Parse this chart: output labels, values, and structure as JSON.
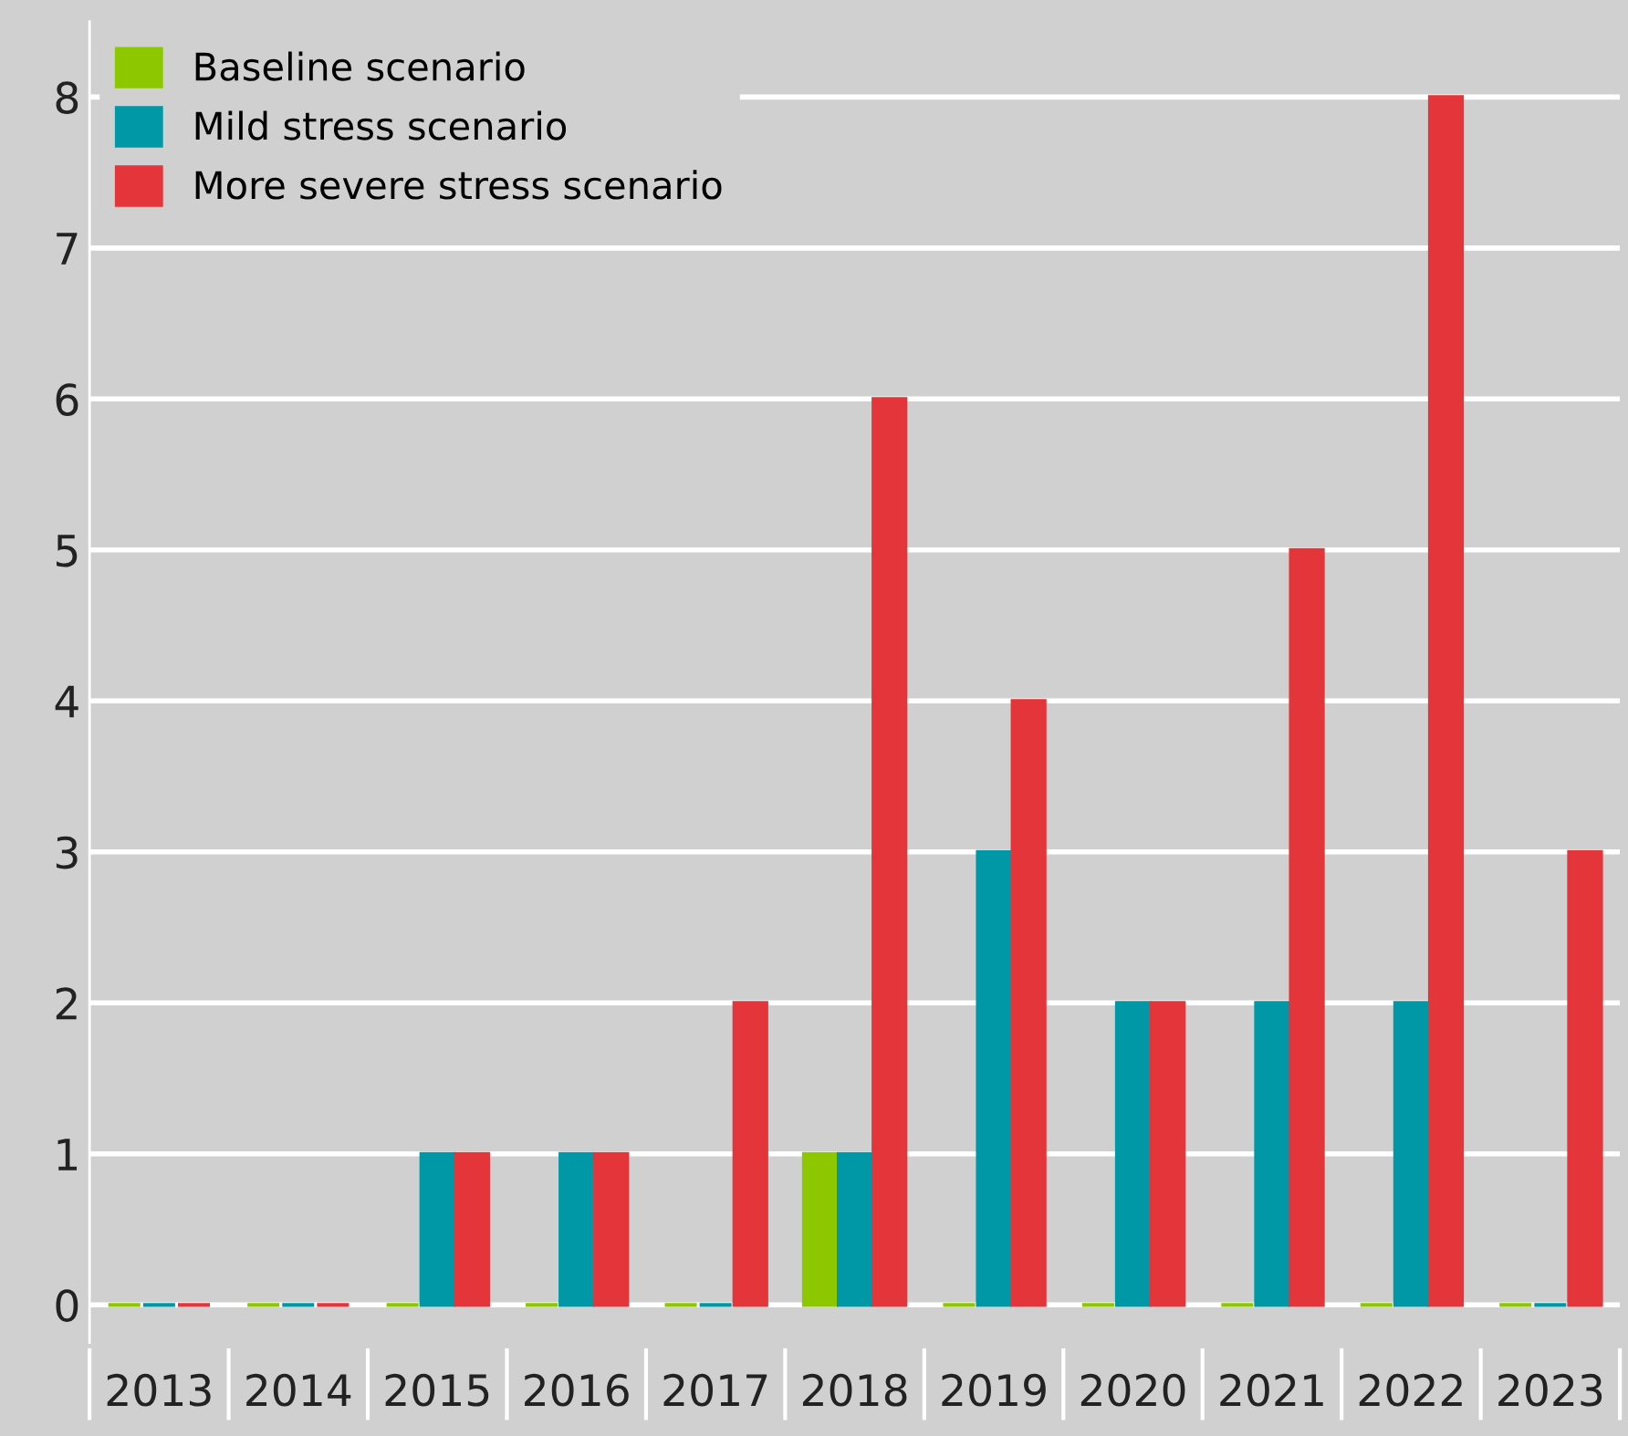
{
  "chart_data": {
    "type": "bar",
    "categories": [
      "2013",
      "2014",
      "2015",
      "2016",
      "2017",
      "2018",
      "2019",
      "2020",
      "2021",
      "2022",
      "2023"
    ],
    "series": [
      {
        "name": "Baseline scenario",
        "color": "#8dc700",
        "values": [
          0,
          0,
          0,
          0,
          0,
          1,
          0,
          0,
          0,
          0,
          0
        ]
      },
      {
        "name": "Mild stress scenario",
        "color": "#0098a6",
        "values": [
          0,
          0,
          1,
          1,
          0,
          1,
          3,
          2,
          2,
          2,
          0
        ]
      },
      {
        "name": "More severe stress scenario",
        "color": "#e3353a",
        "values": [
          0,
          0,
          1,
          1,
          2,
          6,
          4,
          2,
          5,
          8,
          3
        ]
      }
    ],
    "ylim": [
      -0.25,
      8.5
    ],
    "yticks": [
      0,
      1,
      2,
      3,
      4,
      5,
      6,
      7,
      8
    ],
    "grid": "y",
    "legend": "top left"
  }
}
